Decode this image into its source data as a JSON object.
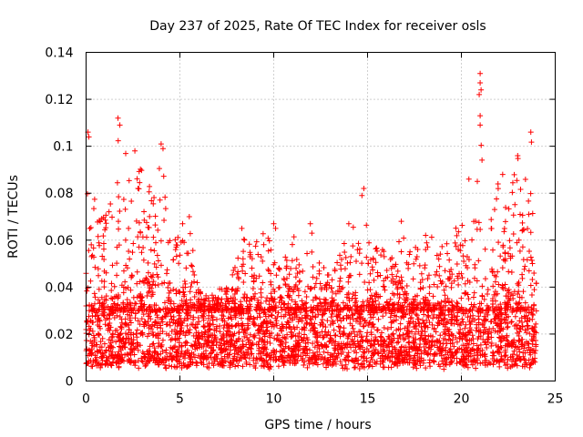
{
  "chart_data": {
    "type": "scatter",
    "title": "Day 237 of 2025, Rate Of TEC Index for receiver osls",
    "xlabel": "GPS time / hours",
    "ylabel": "ROTI / TECUs",
    "xlim": [
      0,
      25
    ],
    "ylim": [
      0,
      0.14
    ],
    "xticks": [
      0,
      5,
      10,
      15,
      20,
      25
    ],
    "xtick_labels": [
      "0",
      "5",
      "10",
      "15",
      "20",
      "25"
    ],
    "yticks": [
      0,
      0.02,
      0.04,
      0.06,
      0.08,
      0.1,
      0.12,
      0.14
    ],
    "ytick_labels": [
      "0",
      "0.02",
      "0.04",
      "0.06",
      "0.08",
      "0.1",
      "0.12",
      "0.14"
    ],
    "grid": true,
    "marker": "+",
    "color": "#ff0000",
    "series": [
      {
        "name": "osls",
        "data_extent_x": [
          0,
          24
        ],
        "baseline_band": [
          0.005,
          0.03
        ],
        "envelope": [
          [
            0.0,
            0.106
          ],
          [
            0.2,
            0.083
          ],
          [
            0.5,
            0.078
          ],
          [
            1.0,
            0.07
          ],
          [
            1.5,
            0.101
          ],
          [
            1.8,
            0.112
          ],
          [
            2.3,
            0.09
          ],
          [
            2.7,
            0.098
          ],
          [
            3.2,
            0.085
          ],
          [
            3.7,
            0.082
          ],
          [
            4.0,
            0.101
          ],
          [
            4.5,
            0.058
          ],
          [
            5.0,
            0.066
          ],
          [
            5.5,
            0.07
          ],
          [
            6.0,
            0.04
          ],
          [
            6.5,
            0.036
          ],
          [
            7.0,
            0.038
          ],
          [
            7.5,
            0.045
          ],
          [
            8.0,
            0.05
          ],
          [
            8.3,
            0.065
          ],
          [
            9.0,
            0.06
          ],
          [
            9.5,
            0.067
          ],
          [
            10.0,
            0.054
          ],
          [
            10.5,
            0.05
          ],
          [
            11.0,
            0.065
          ],
          [
            11.5,
            0.045
          ],
          [
            12.0,
            0.067
          ],
          [
            12.5,
            0.05
          ],
          [
            13.0,
            0.048
          ],
          [
            13.5,
            0.055
          ],
          [
            14.0,
            0.067
          ],
          [
            14.5,
            0.07
          ],
          [
            14.8,
            0.082
          ],
          [
            15.2,
            0.05
          ],
          [
            15.5,
            0.058
          ],
          [
            16.0,
            0.06
          ],
          [
            16.5,
            0.05
          ],
          [
            16.8,
            0.068
          ],
          [
            17.2,
            0.055
          ],
          [
            17.7,
            0.058
          ],
          [
            18.2,
            0.065
          ],
          [
            18.7,
            0.058
          ],
          [
            19.2,
            0.06
          ],
          [
            19.6,
            0.07
          ],
          [
            20.0,
            0.065
          ],
          [
            20.4,
            0.086
          ],
          [
            20.8,
            0.08
          ],
          [
            21.0,
            0.131
          ],
          [
            21.4,
            0.065
          ],
          [
            21.8,
            0.09
          ],
          [
            22.2,
            0.088
          ],
          [
            22.6,
            0.082
          ],
          [
            23.0,
            0.096
          ],
          [
            23.4,
            0.085
          ],
          [
            23.7,
            0.106
          ],
          [
            24.0,
            0.092
          ]
        ],
        "notable_points": [
          {
            "x": 21.0,
            "y": 0.131
          },
          {
            "x": 21.0,
            "y": 0.127
          },
          {
            "x": 21.05,
            "y": 0.124
          },
          {
            "x": 20.95,
            "y": 0.122
          },
          {
            "x": 21.0,
            "y": 0.113
          },
          {
            "x": 21.0,
            "y": 0.109
          },
          {
            "x": 1.7,
            "y": 0.112
          },
          {
            "x": 1.8,
            "y": 0.109
          },
          {
            "x": 0.1,
            "y": 0.106
          },
          {
            "x": 0.15,
            "y": 0.104
          },
          {
            "x": 23.7,
            "y": 0.106
          },
          {
            "x": 4.0,
            "y": 0.101
          },
          {
            "x": 4.1,
            "y": 0.099
          },
          {
            "x": 2.6,
            "y": 0.098
          },
          {
            "x": 14.8,
            "y": 0.082
          },
          {
            "x": 14.7,
            "y": 0.079
          },
          {
            "x": 10.0,
            "y": 0.067
          },
          {
            "x": 10.1,
            "y": 0.065
          },
          {
            "x": 14.0,
            "y": 0.067
          },
          {
            "x": 16.8,
            "y": 0.068
          },
          {
            "x": 8.3,
            "y": 0.065
          },
          {
            "x": 11.95,
            "y": 0.067
          },
          {
            "x": 5.5,
            "y": 0.07
          },
          {
            "x": 22.2,
            "y": 0.088
          },
          {
            "x": 23.0,
            "y": 0.096
          },
          {
            "x": 20.4,
            "y": 0.086
          }
        ]
      }
    ]
  }
}
